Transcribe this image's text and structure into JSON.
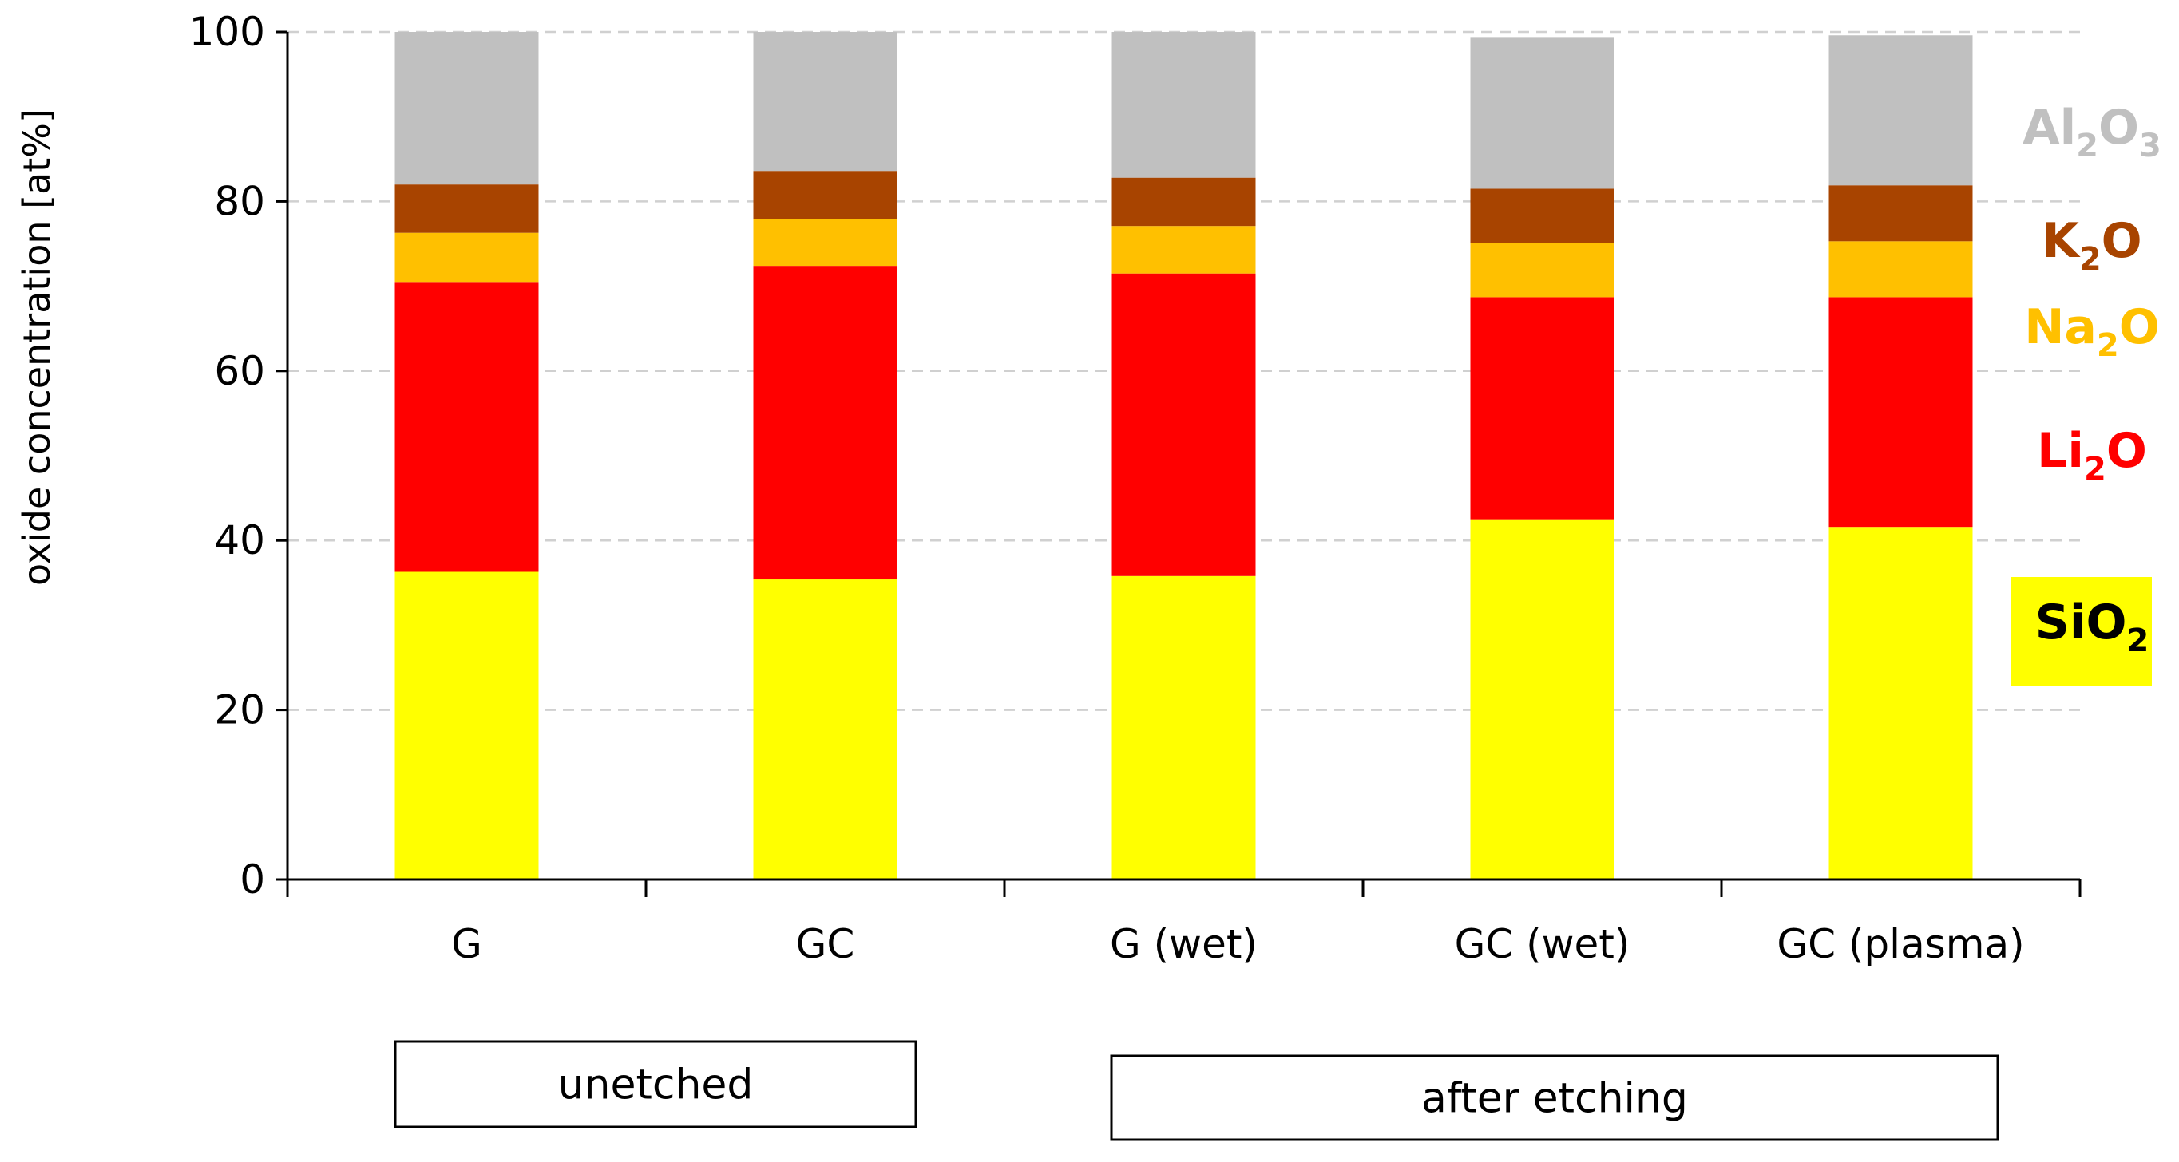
{
  "chart_data": {
    "type": "bar",
    "stacked": true,
    "title": "",
    "xlabel": "",
    "ylabel": "oxide concentration [at%]",
    "ylim": [
      0,
      100
    ],
    "yticks": [
      "0",
      "20",
      "40",
      "60",
      "80",
      "100"
    ],
    "grid": true,
    "categories": [
      "G",
      "GC",
      "G (wet)",
      "GC (wet)",
      "GC (plasma)"
    ],
    "series": [
      {
        "name": "SiO2",
        "label_main": "SiO",
        "label_sub": "2",
        "label_tail": "",
        "color": "#ffff00",
        "text_color": "#000000",
        "highlight": true,
        "values": [
          36.3,
          35.4,
          35.8,
          42.5,
          41.6
        ]
      },
      {
        "name": "Li2O",
        "label_main": "Li",
        "label_sub": "2",
        "label_tail": "O",
        "color": "#ff0000",
        "text_color": "#ff0000",
        "highlight": false,
        "values": [
          34.2,
          37.0,
          35.7,
          26.2,
          27.1
        ]
      },
      {
        "name": "Na2O",
        "label_main": "Na",
        "label_sub": "2",
        "label_tail": "O",
        "color": "#ffc000",
        "text_color": "#ffc000",
        "highlight": false,
        "values": [
          5.8,
          5.5,
          5.6,
          6.4,
          6.6
        ]
      },
      {
        "name": "K2O",
        "label_main": "K",
        "label_sub": "2",
        "label_tail": "O",
        "color": "#a84400",
        "text_color": "#a84400",
        "highlight": false,
        "values": [
          5.7,
          5.7,
          5.7,
          6.4,
          6.6
        ]
      },
      {
        "name": "Al2O3",
        "label_main": "Al",
        "label_sub": "2",
        "label_tail": "O",
        "label_sub2": "3",
        "color": "#c0c0c0",
        "text_color": "#c0c0c0",
        "highlight": false,
        "values": [
          18.0,
          16.4,
          17.2,
          17.9,
          17.7
        ]
      }
    ],
    "groups": [
      {
        "label": "unetched",
        "categories": [
          "G",
          "GC"
        ]
      },
      {
        "label": "after etching",
        "categories": [
          "G (wet)",
          "GC (wet)",
          "GC (plasma)"
        ]
      }
    ]
  }
}
